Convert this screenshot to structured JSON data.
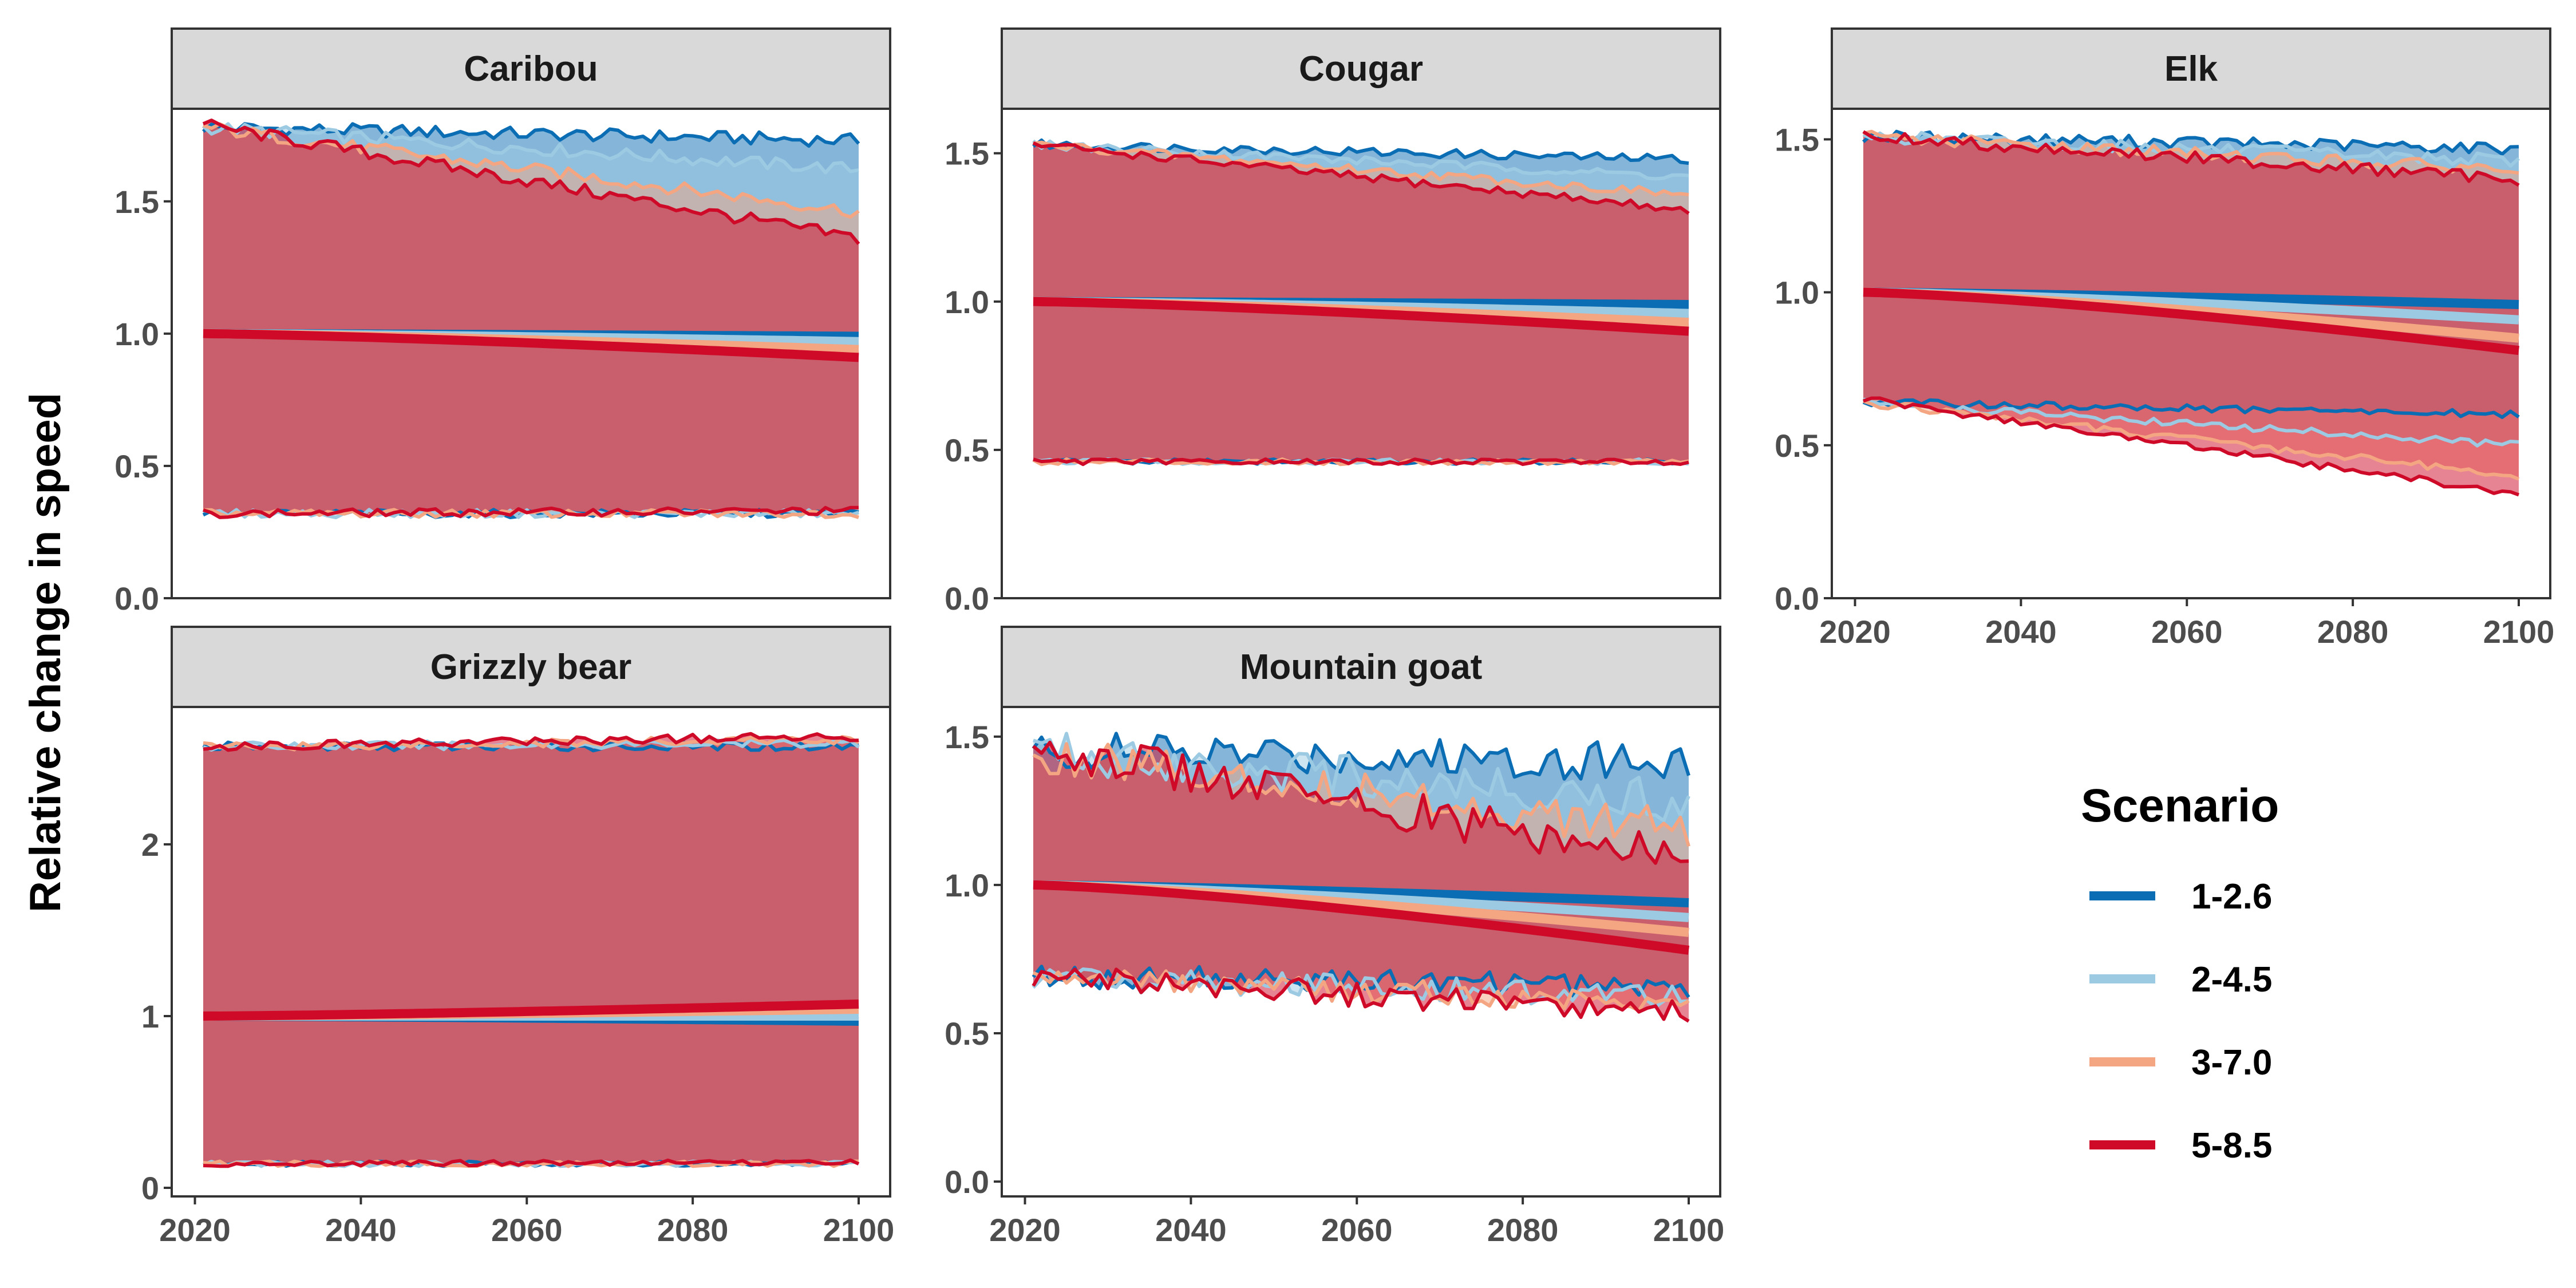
{
  "chart_data": {
    "type": "line",
    "ylabel": "Relative change in speed",
    "xlabel": "",
    "legend": {
      "title": "Scenario",
      "placement": "right",
      "entries": [
        {
          "name": "1-2.6",
          "color": "#0b6db3"
        },
        {
          "name": "2-4.5",
          "color": "#9ccae3"
        },
        {
          "name": "3-7.0",
          "color": "#f4a582"
        },
        {
          "name": "5-8.5",
          "color": "#cf0a28"
        }
      ]
    },
    "x_ticks": [
      2020,
      2040,
      2060,
      2080,
      2100
    ],
    "x_range": [
      2021,
      2100
    ],
    "grid": false,
    "panels": [
      {
        "title": "Caribou",
        "ylim": [
          0,
          1.85
        ],
        "y_ticks": [
          0,
          0.5,
          1,
          1.5
        ],
        "y_tick_labels": [
          "0.0",
          "0.5",
          "1.0",
          "1.5"
        ],
        "series": [
          {
            "name": "1-2.6",
            "mean_end": 0.99,
            "upper_start": 1.78,
            "upper_end": 1.73,
            "lower_start": 0.32,
            "lower_end": 0.32,
            "noise": 0.025
          },
          {
            "name": "2-4.5",
            "mean_end": 0.97,
            "upper_start": 1.78,
            "upper_end": 1.62,
            "lower_start": 0.32,
            "lower_end": 0.32,
            "noise": 0.025
          },
          {
            "name": "3-7.0",
            "mean_end": 0.94,
            "upper_start": 1.78,
            "upper_end": 1.46,
            "lower_start": 0.32,
            "lower_end": 0.32,
            "noise": 0.025
          },
          {
            "name": "5-8.5",
            "mean_end": 0.91,
            "upper_start": 1.79,
            "upper_end": 1.36,
            "lower_start": 0.32,
            "lower_end": 0.33,
            "noise": 0.025
          }
        ]
      },
      {
        "title": "Cougar",
        "ylim": [
          0,
          1.65
        ],
        "y_ticks": [
          0,
          0.5,
          1,
          1.5
        ],
        "y_tick_labels": [
          "0.0",
          "0.5",
          "1.0",
          "1.5"
        ],
        "series": [
          {
            "name": "1-2.6",
            "mean_end": 0.99,
            "upper_start": 1.53,
            "upper_end": 1.48,
            "lower_start": 0.46,
            "lower_end": 0.46,
            "noise": 0.015
          },
          {
            "name": "2-4.5",
            "mean_end": 0.96,
            "upper_start": 1.53,
            "upper_end": 1.42,
            "lower_start": 0.46,
            "lower_end": 0.46,
            "noise": 0.015
          },
          {
            "name": "3-7.0",
            "mean_end": 0.93,
            "upper_start": 1.53,
            "upper_end": 1.36,
            "lower_start": 0.46,
            "lower_end": 0.46,
            "noise": 0.015
          },
          {
            "name": "5-8.5",
            "mean_end": 0.9,
            "upper_start": 1.53,
            "upper_end": 1.31,
            "lower_start": 0.46,
            "lower_end": 0.46,
            "noise": 0.015
          }
        ]
      },
      {
        "title": "Elk",
        "ylim": [
          0,
          1.6
        ],
        "y_ticks": [
          0,
          0.5,
          1,
          1.5
        ],
        "y_tick_labels": [
          "0.0",
          "0.5",
          "1.0",
          "1.5"
        ],
        "series": [
          {
            "name": "1-2.6",
            "mean_end": 0.96,
            "upper_start": 1.51,
            "upper_end": 1.47,
            "lower_start": 0.64,
            "lower_end": 0.6,
            "noise": 0.02
          },
          {
            "name": "2-4.5",
            "mean_end": 0.91,
            "upper_start": 1.51,
            "upper_end": 1.43,
            "lower_start": 0.64,
            "lower_end": 0.5,
            "noise": 0.02
          },
          {
            "name": "3-7.0",
            "mean_end": 0.85,
            "upper_start": 1.51,
            "upper_end": 1.4,
            "lower_start": 0.64,
            "lower_end": 0.4,
            "noise": 0.02
          },
          {
            "name": "5-8.5",
            "mean_end": 0.81,
            "upper_start": 1.51,
            "upper_end": 1.37,
            "lower_start": 0.65,
            "lower_end": 0.34,
            "noise": 0.02
          }
        ]
      },
      {
        "title": "Grizzly bear",
        "ylim": [
          -0.05,
          2.8
        ],
        "y_ticks": [
          0,
          1,
          2
        ],
        "y_tick_labels": [
          "0",
          "1",
          "2"
        ],
        "series": [
          {
            "name": "1-2.6",
            "mean_end": 0.97,
            "upper_start": 2.57,
            "upper_end": 2.57,
            "lower_start": 0.14,
            "lower_end": 0.14,
            "noise": 0.025
          },
          {
            "name": "2-4.5",
            "mean_end": 1.0,
            "upper_start": 2.57,
            "upper_end": 2.59,
            "lower_start": 0.14,
            "lower_end": 0.14,
            "noise": 0.025
          },
          {
            "name": "3-7.0",
            "mean_end": 1.04,
            "upper_start": 2.57,
            "upper_end": 2.61,
            "lower_start": 0.14,
            "lower_end": 0.14,
            "noise": 0.025
          },
          {
            "name": "5-8.5",
            "mean_end": 1.07,
            "upper_start": 2.57,
            "upper_end": 2.63,
            "lower_start": 0.14,
            "lower_end": 0.15,
            "noise": 0.025
          }
        ]
      },
      {
        "title": "Mountain goat",
        "ylim": [
          -0.05,
          1.6
        ],
        "y_ticks": [
          0,
          0.5,
          1,
          1.5
        ],
        "y_tick_labels": [
          "0.0",
          "0.5",
          "1.0",
          "1.5"
        ],
        "series": [
          {
            "name": "1-2.6",
            "mean_end": 0.94,
            "upper_start": 1.45,
            "upper_end": 1.42,
            "lower_start": 0.69,
            "lower_end": 0.66,
            "noise": 0.07
          },
          {
            "name": "2-4.5",
            "mean_end": 0.89,
            "upper_start": 1.45,
            "upper_end": 1.28,
            "lower_start": 0.69,
            "lower_end": 0.62,
            "noise": 0.07
          },
          {
            "name": "3-7.0",
            "mean_end": 0.84,
            "upper_start": 1.45,
            "upper_end": 1.18,
            "lower_start": 0.69,
            "lower_end": 0.6,
            "noise": 0.07
          },
          {
            "name": "5-8.5",
            "mean_end": 0.78,
            "upper_start": 1.47,
            "upper_end": 1.08,
            "lower_start": 0.69,
            "lower_end": 0.57,
            "noise": 0.07
          }
        ]
      }
    ]
  }
}
